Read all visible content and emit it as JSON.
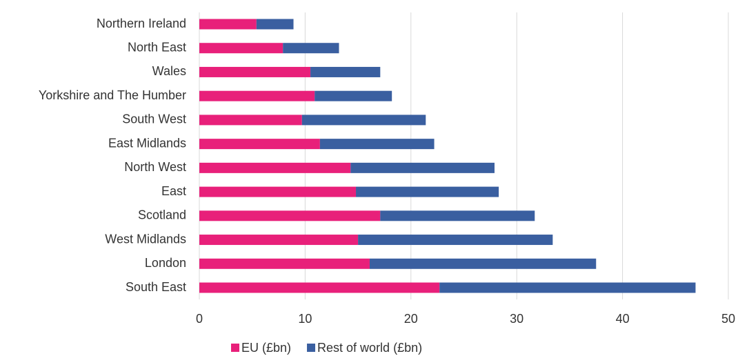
{
  "chart_data": {
    "type": "bar",
    "orientation": "horizontal",
    "stacked": true,
    "categories": [
      "Northern Ireland",
      "North East",
      "Wales",
      "Yorkshire and The Humber",
      "South West",
      "East Midlands",
      "North West",
      "East",
      "Scotland",
      "West Midlands",
      "London",
      "South East"
    ],
    "series": [
      {
        "name": "EU (£bn)",
        "color": "#e8207a",
        "values": [
          5.4,
          7.9,
          10.5,
          10.9,
          9.7,
          11.4,
          14.3,
          14.8,
          17.1,
          15.0,
          16.1,
          22.7
        ]
      },
      {
        "name": "Rest of world (£bn)",
        "color": "#3a5fa0",
        "values": [
          3.5,
          5.3,
          6.6,
          7.3,
          11.7,
          10.8,
          13.6,
          13.5,
          14.6,
          18.4,
          21.4,
          24.2
        ]
      }
    ],
    "xlim": [
      0,
      50
    ],
    "xticks": [
      0,
      10,
      20,
      30,
      40,
      50
    ],
    "grid": true,
    "legend": "bottom"
  }
}
